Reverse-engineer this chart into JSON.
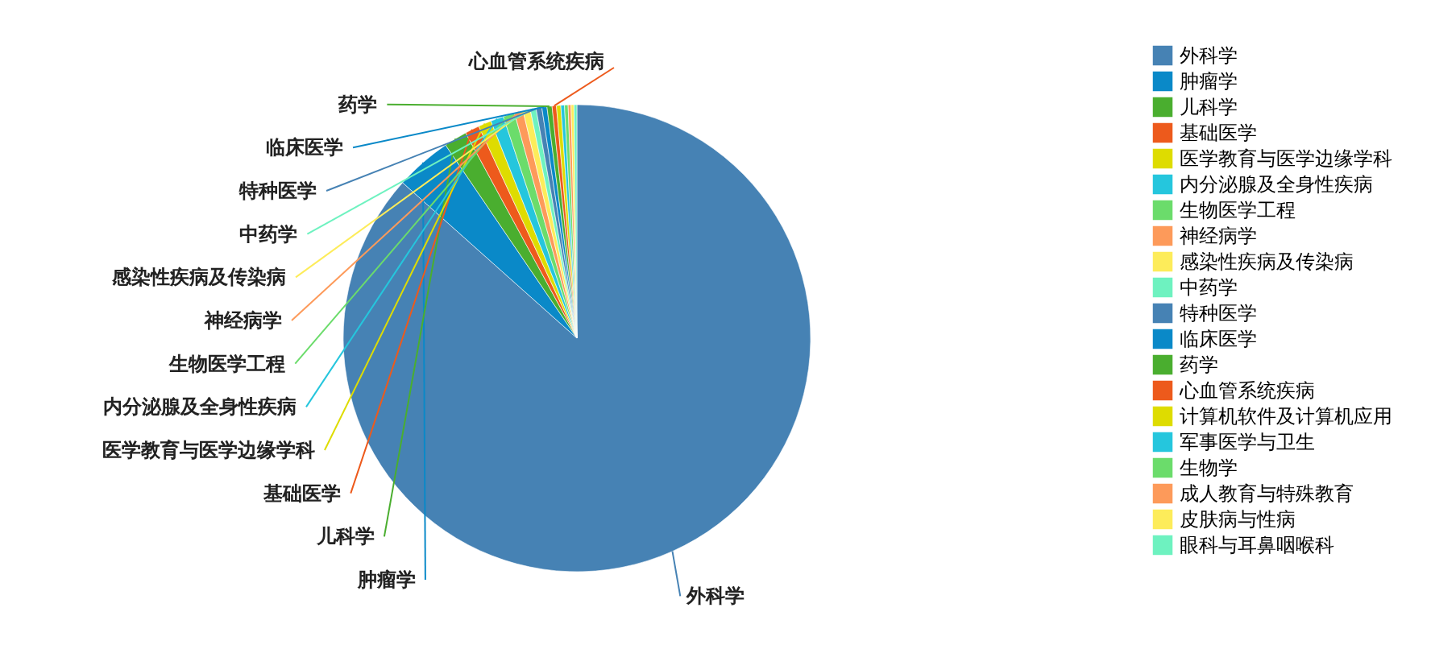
{
  "chart_data": {
    "type": "pie",
    "categories": [
      "外科学",
      "肿瘤学",
      "儿科学",
      "基础医学",
      "医学教育与医学边缘学科",
      "内分泌腺及全身性疾病",
      "生物医学工程",
      "神经病学",
      "感染性疾病及传染病",
      "中药学",
      "特种医学",
      "临床医学",
      "药学",
      "心血管系统疾病",
      "计算机软件及计算机应用",
      "军事医学与卫生",
      "生物学",
      "成人教育与特殊教育",
      "皮肤病与性病",
      "眼科与耳鼻咽喉科"
    ],
    "values": [
      86.6,
      3.9,
      1.6,
      1,
      0.9,
      0.9,
      0.8,
      0.6,
      0.5,
      0.4,
      0.4,
      0.35,
      0.35,
      0.3,
      0.3,
      0.25,
      0.25,
      0.2,
      0.2,
      0.2
    ],
    "colors": [
      "#4682b4",
      "#0a89c8",
      "#4aae2f",
      "#ed5a1c",
      "#dedc00",
      "#25c6dd",
      "#6bdc6b",
      "#fd9a5a",
      "#fdec5a",
      "#6ef2c0",
      "#4682b4",
      "#0a89c8",
      "#4aae2f",
      "#ed5a1c",
      "#dedc00",
      "#25c6dd",
      "#6bdc6b",
      "#fd9a5a",
      "#fdec5a",
      "#6ef2c0"
    ],
    "annotations": [
      "外科学",
      "肿瘤学",
      "儿科学",
      "基础医学",
      "医学教育与医学边缘学科",
      "内分泌腺及全身性疾病",
      "生物医学工程",
      "神经病学",
      "感染性疾病及传染病",
      "中药学",
      "特种医学",
      "临床医学",
      "药学",
      "心血管系统疾病"
    ],
    "legend": "right"
  }
}
